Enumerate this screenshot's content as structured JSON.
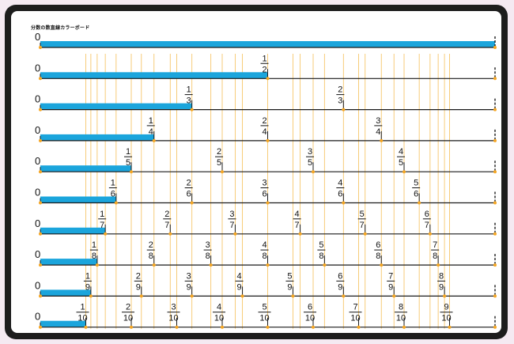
{
  "title": "分数の数直線カラーボード",
  "zero_label": "0",
  "rows": [
    {
      "denominator": 1,
      "bar_fraction": 1,
      "labels": []
    },
    {
      "denominator": 2,
      "bar_fraction": 0.5,
      "labels": [
        {
          "num": "1",
          "den": "2"
        }
      ]
    },
    {
      "denominator": 3,
      "bar_fraction": 0.3333,
      "labels": [
        {
          "num": "1",
          "den": "3"
        },
        {
          "num": "2",
          "den": "3"
        }
      ]
    },
    {
      "denominator": 4,
      "bar_fraction": 0.25,
      "labels": [
        {
          "num": "1",
          "den": "4"
        },
        {
          "num": "2",
          "den": "4"
        },
        {
          "num": "3",
          "den": "4"
        }
      ]
    },
    {
      "denominator": 5,
      "bar_fraction": 0.2,
      "labels": [
        {
          "num": "1",
          "den": "5"
        },
        {
          "num": "2",
          "den": "5"
        },
        {
          "num": "3",
          "den": "5"
        },
        {
          "num": "4",
          "den": "5"
        }
      ]
    },
    {
      "denominator": 6,
      "bar_fraction": 0.1667,
      "labels": [
        {
          "num": "1",
          "den": "6"
        },
        {
          "num": "2",
          "den": "6"
        },
        {
          "num": "3",
          "den": "6"
        },
        {
          "num": "4",
          "den": "6"
        },
        {
          "num": "5",
          "den": "6"
        }
      ]
    },
    {
      "denominator": 7,
      "bar_fraction": 0.1429,
      "labels": [
        {
          "num": "1",
          "den": "7"
        },
        {
          "num": "2",
          "den": "7"
        },
        {
          "num": "3",
          "den": "7"
        },
        {
          "num": "4",
          "den": "7"
        },
        {
          "num": "5",
          "den": "7"
        },
        {
          "num": "6",
          "den": "7"
        }
      ]
    },
    {
      "denominator": 8,
      "bar_fraction": 0.125,
      "labels": [
        {
          "num": "1",
          "den": "8"
        },
        {
          "num": "2",
          "den": "8"
        },
        {
          "num": "3",
          "den": "8"
        },
        {
          "num": "4",
          "den": "8"
        },
        {
          "num": "5",
          "den": "8"
        },
        {
          "num": "6",
          "den": "8"
        },
        {
          "num": "7",
          "den": "8"
        }
      ]
    },
    {
      "denominator": 9,
      "bar_fraction": 0.1111,
      "labels": [
        {
          "num": "1",
          "den": "9"
        },
        {
          "num": "2",
          "den": "9"
        },
        {
          "num": "3",
          "den": "9"
        },
        {
          "num": "4",
          "den": "9"
        },
        {
          "num": "5",
          "den": "9"
        },
        {
          "num": "6",
          "den": "9"
        },
        {
          "num": "7",
          "den": "9"
        },
        {
          "num": "8",
          "den": "9"
        }
      ]
    },
    {
      "denominator": 10,
      "bar_fraction": 0.1,
      "labels": [
        {
          "num": "1",
          "den": "10"
        },
        {
          "num": "2",
          "den": "10"
        },
        {
          "num": "3",
          "den": "10"
        },
        {
          "num": "4",
          "den": "10"
        },
        {
          "num": "5",
          "den": "10"
        },
        {
          "num": "6",
          "den": "10"
        },
        {
          "num": "7",
          "den": "10"
        },
        {
          "num": "8",
          "den": "10"
        },
        {
          "num": "9",
          "den": "10"
        }
      ]
    }
  ],
  "colors": {
    "bar": "#1ba5dc",
    "guide": "#f6c66a",
    "dot": "#f5a623",
    "line": "#1a1a1a",
    "frame": "#1d1d1d"
  }
}
